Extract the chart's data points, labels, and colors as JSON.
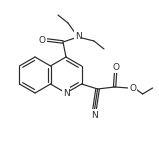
{
  "bg": "#ffffff",
  "lc": "#2a2a2a",
  "lw": 0.85,
  "fs": 6.0,
  "figsize": [
    1.59,
    1.47
  ],
  "dpi": 100,
  "xlim": [
    0,
    159
  ],
  "ylim": [
    0,
    147
  ]
}
